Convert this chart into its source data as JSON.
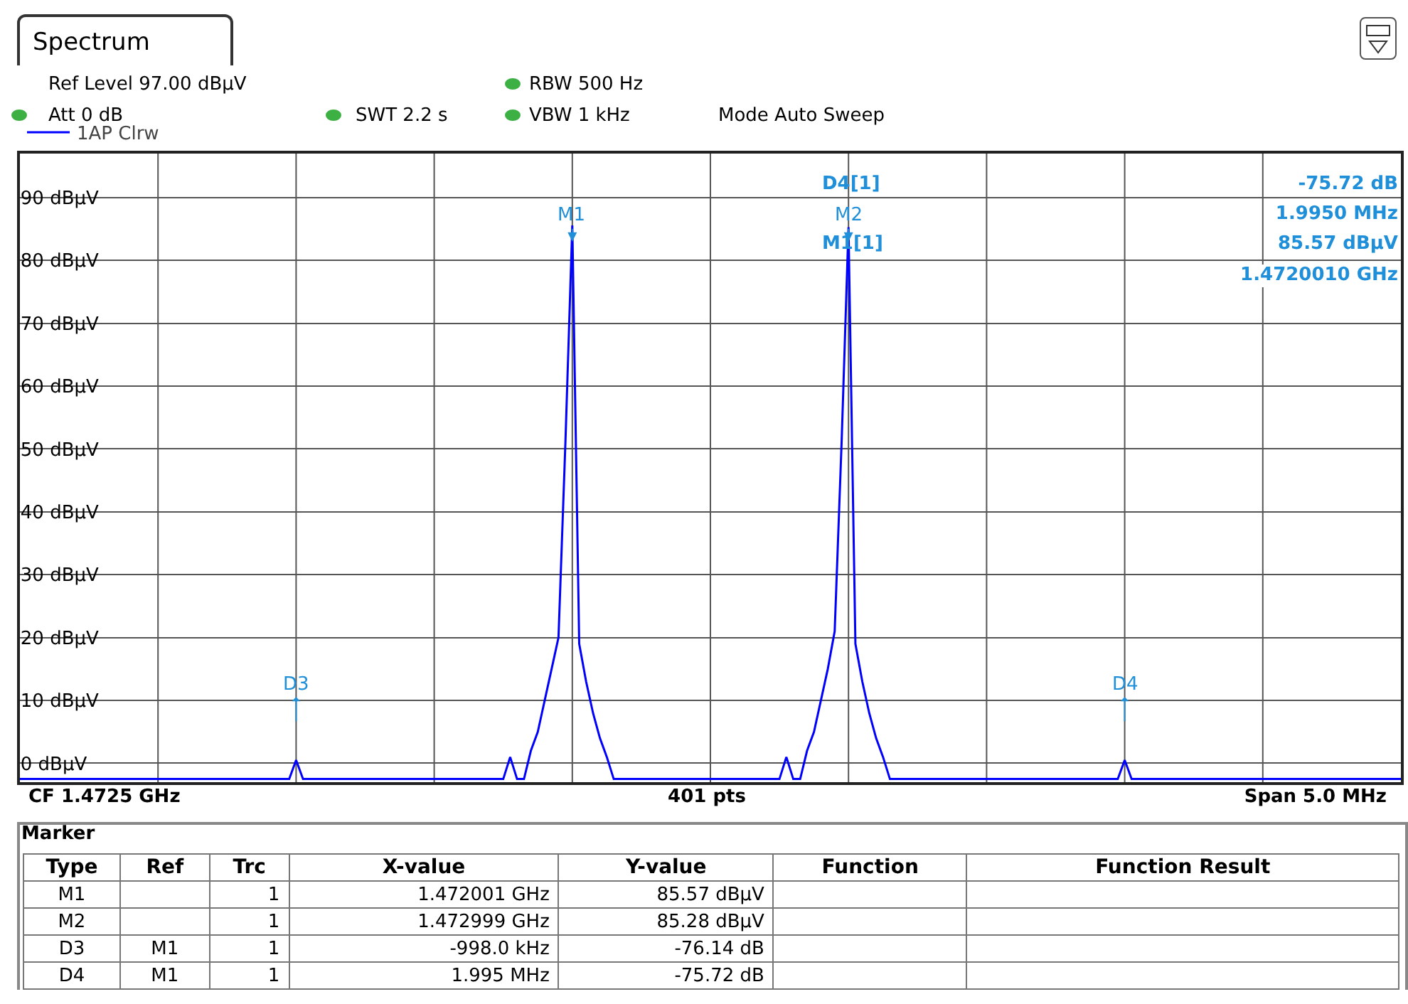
{
  "chart_data": {
    "type": "line",
    "title": "Spectrum",
    "legend": "top left",
    "grid": true,
    "tick_labels": "y",
    "categories": [
      null,
      null,
      null,
      null,
      null,
      null,
      null,
      null,
      null,
      null,
      null,
      null,
      null,
      null,
      null,
      null,
      null,
      null,
      null,
      null,
      null,
      null,
      null,
      null,
      null,
      null,
      null,
      null,
      null,
      null,
      null,
      null,
      null,
      null,
      null,
      null,
      null,
      null,
      null,
      null,
      null,
      null,
      null,
      null,
      null,
      null,
      null,
      null,
      null,
      null,
      null,
      null,
      null,
      null,
      null,
      null,
      null,
      null,
      null,
      null,
      null,
      null,
      null,
      null,
      null,
      null,
      null,
      null,
      null,
      null,
      null,
      null,
      null,
      null,
      null,
      null,
      null,
      null,
      null,
      null,
      null,
      null,
      null,
      null,
      null,
      null,
      null,
      null,
      null,
      null,
      null,
      null,
      null,
      null,
      null,
      null,
      null,
      null,
      null,
      null,
      null,
      null,
      null,
      null,
      null,
      null,
      null,
      null,
      null,
      null,
      null,
      null,
      null,
      null,
      null,
      null,
      null,
      null,
      null,
      null,
      null,
      null,
      null,
      null,
      null,
      null,
      null,
      null,
      null,
      null,
      null,
      null,
      null,
      null,
      null,
      null,
      null,
      null,
      null,
      null,
      null,
      null,
      null,
      null,
      null,
      null,
      null,
      null,
      null,
      null,
      null,
      null,
      null,
      null,
      null,
      null,
      null,
      null,
      null,
      null,
      null,
      null,
      null,
      null,
      null,
      null,
      null,
      null,
      null,
      null,
      null,
      null,
      null,
      null,
      null,
      null,
      null,
      null,
      null,
      null,
      null,
      null,
      null,
      null,
      null,
      null,
      null,
      null,
      null,
      null,
      null,
      null,
      null,
      null,
      null,
      null,
      null,
      null,
      null,
      null,
      null
    ],
    "ylim": [
      -3,
      97
    ],
    "yticks": [
      {
        "value": 0,
        "label": "0 dBµV"
      },
      {
        "value": 10,
        "label": "10 dBµV"
      },
      {
        "value": 20,
        "label": "20 dBµV"
      },
      {
        "value": 30,
        "label": "30 dBµV"
      },
      {
        "value": 40,
        "label": "40 dBµV"
      },
      {
        "value": 50,
        "label": "50 dBµV"
      },
      {
        "value": 60,
        "label": "60 dBµV"
      },
      {
        "value": 70,
        "label": "70 dBµV"
      },
      {
        "value": 80,
        "label": "80 dBµV"
      },
      {
        "value": 90,
        "label": "90 dBµV"
      }
    ],
    "series": [
      {
        "name": "1AP Clrw",
        "color": "#0000ff",
        "values": [
          -2.5,
          -2.5,
          -2.5,
          -2.5,
          -2.5,
          -2.5,
          -2.5,
          -2.5,
          -2.5,
          -2.5,
          -2.5,
          -2.5,
          -2.5,
          -2.5,
          -2.5,
          -2.5,
          -2.5,
          -2.5,
          -2.5,
          -2.5,
          -2.5,
          -2.5,
          -2.5,
          -2.5,
          -2.5,
          -2.5,
          -2.5,
          -2.5,
          -2.5,
          -2.5,
          -2.5,
          -2.5,
          -2.5,
          -2.5,
          -2.5,
          -2.5,
          -2.5,
          -2.5,
          -2.5,
          -2.5,
          0.5,
          -2.5,
          -2.5,
          -2.5,
          -2.5,
          -2.5,
          -2.5,
          -2.5,
          -2.5,
          -2.5,
          -2.5,
          -2.5,
          -2.5,
          -2.5,
          -2.5,
          -2.5,
          -2.5,
          -2.5,
          -2.5,
          -2.5,
          -2.5,
          -2.5,
          -2.5,
          -2.5,
          -2.5,
          -2.5,
          -2.5,
          -2.5,
          -2.5,
          -2.5,
          -2.5,
          1,
          -2.5,
          -2.5,
          2,
          5,
          10,
          15,
          20,
          51,
          85.57,
          19,
          13,
          8,
          4,
          1,
          -2.5,
          -2.5,
          -2.5,
          -2.5,
          -2.5,
          -2.5,
          -2.5,
          -2.5,
          -2.5,
          -2.5,
          -2.5,
          -2.5,
          -2.5,
          -2.5,
          -2.5,
          -2.5,
          -2.5,
          -2.5,
          -2.5,
          -2.5,
          -2.5,
          -2.5,
          -2.5,
          -2.5,
          -2.5,
          1,
          -2.5,
          -2.5,
          2,
          5,
          10,
          15,
          21,
          51,
          85.28,
          19,
          13,
          8,
          4,
          1,
          -2.5,
          -2.5,
          -2.5,
          -2.5,
          -2.5,
          -2.5,
          -2.5,
          -2.5,
          -2.5,
          -2.5,
          -2.5,
          -2.5,
          -2.5,
          -2.5,
          -2.5,
          -2.5,
          -2.5,
          -2.5,
          -2.5,
          -2.5,
          -2.5,
          -2.5,
          -2.5,
          -2.5,
          -2.5,
          -2.5,
          -2.5,
          -2.5,
          -2.5,
          -2.5,
          -2.5,
          -2.5,
          -2.5,
          -2.5,
          0.5,
          -2.5,
          -2.5,
          -2.5,
          -2.5,
          -2.5,
          -2.5,
          -2.5,
          -2.5,
          -2.5,
          -2.5,
          -2.5,
          -2.5,
          -2.5,
          -2.5,
          -2.5,
          -2.5,
          -2.5,
          -2.5,
          -2.5,
          -2.5,
          -2.5,
          -2.5,
          -2.5,
          -2.5,
          -2.5,
          -2.5,
          -2.5,
          -2.5,
          -2.5,
          -2.5,
          -2.5,
          -2.5,
          -2.5,
          -2.5,
          -2.5,
          -2.5,
          -2.5,
          -2.5,
          -2.5,
          -2.5
        ]
      }
    ],
    "annotations": [
      "Ref Level 97.00 dBµV",
      "Att 0 dB",
      "SWT 2.2 s",
      "RBW 500 Hz",
      "VBW 1 kHz",
      "Mode Auto Sweep",
      "CF 1.4725 GHz",
      "401 pts",
      "Span 5.0 MHz",
      "D4[1]",
      "-75.72 dB",
      "1.9950 MHz",
      "M1[1]",
      "85.57 dBµV",
      "1.4720010 GHz",
      "Marker",
      "Type",
      "Ref",
      "Trc",
      "X-value",
      "Y-value",
      "Function",
      "Function Result",
      "M1",
      "1",
      "1.472001 GHz",
      "85.57 dBµV",
      "M2",
      "1",
      "1.472999 GHz",
      "85.28 dBµV",
      "D3",
      "M1",
      "1",
      "-998.0 kHz",
      "-76.14 dB",
      "D4",
      "M1",
      "1",
      "1.995 MHz",
      "-75.72 dB",
      "M1",
      "M2",
      "D3",
      "D4"
    ]
  }
}
